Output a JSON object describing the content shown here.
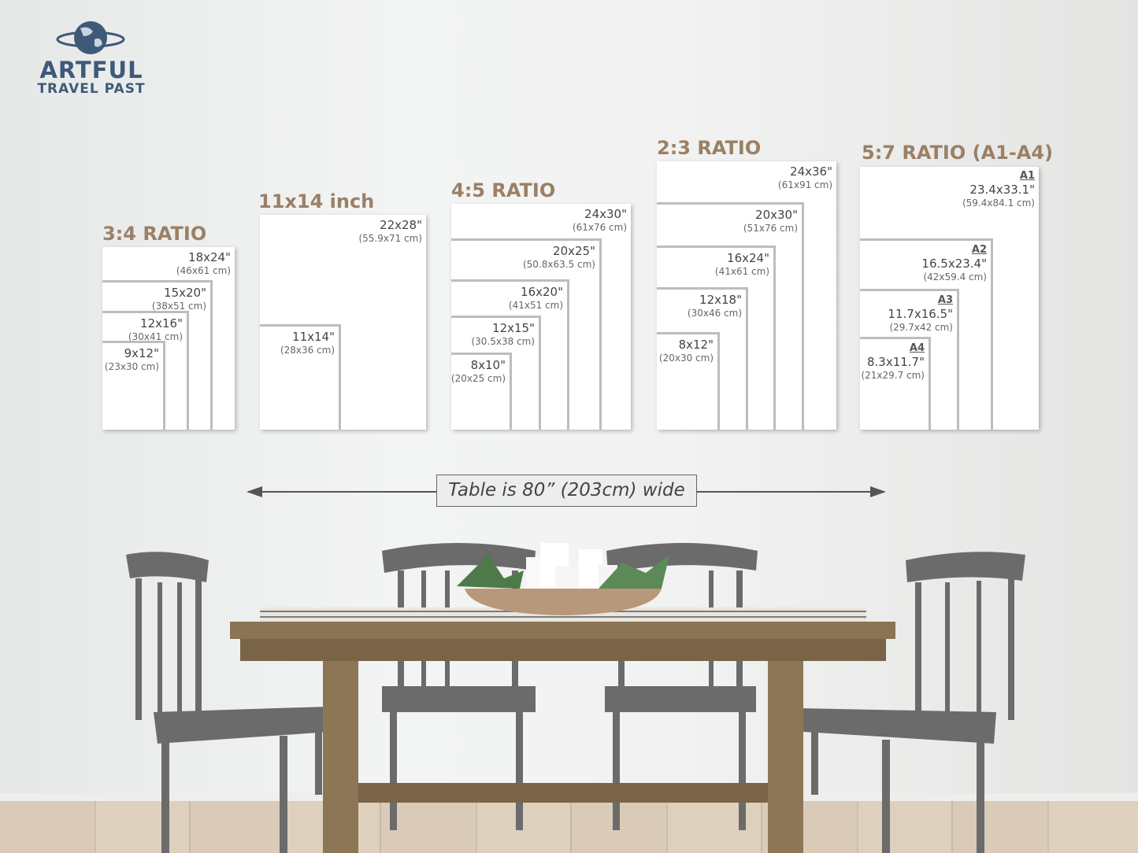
{
  "logo": {
    "line1": "ARTFUL",
    "line2": "TRAVEL PAST",
    "icon": "globe-icon",
    "color": "#3f5a78"
  },
  "accent_color": "#9b8066",
  "groups": [
    {
      "title": "3:4 RATIO",
      "sizes": [
        {
          "in": "18x24\"",
          "cm": "(46x61 cm)"
        },
        {
          "in": "15x20\"",
          "cm": "(38x51 cm)"
        },
        {
          "in": "12x16\"",
          "cm": "(30x41 cm)"
        },
        {
          "in": "9x12\"",
          "cm": "(23x30 cm)"
        }
      ]
    },
    {
      "title": "11x14 inch",
      "sizes": [
        {
          "in": "22x28\"",
          "cm": "(55.9x71 cm)"
        },
        {
          "in": "11x14\"",
          "cm": "(28x36 cm)"
        }
      ]
    },
    {
      "title": "4:5 RATIO",
      "sizes": [
        {
          "in": "24x30\"",
          "cm": "(61x76 cm)"
        },
        {
          "in": "20x25\"",
          "cm": "(50.8x63.5 cm)"
        },
        {
          "in": "16x20\"",
          "cm": "(41x51 cm)"
        },
        {
          "in": "12x15\"",
          "cm": "(30.5x38 cm)"
        },
        {
          "in": "8x10\"",
          "cm": "(20x25 cm)"
        }
      ]
    },
    {
      "title": "2:3 RATIO",
      "sizes": [
        {
          "in": "24x36\"",
          "cm": "(61x91 cm)"
        },
        {
          "in": "20x30\"",
          "cm": "(51x76 cm)"
        },
        {
          "in": "16x24\"",
          "cm": "(41x61 cm)"
        },
        {
          "in": "12x18\"",
          "cm": "(30x46 cm)"
        },
        {
          "in": "8x12\"",
          "cm": "(20x30 cm)"
        }
      ]
    },
    {
      "title": "5:7 RATIO (A1-A4)",
      "sizes": [
        {
          "paper": "A1",
          "in": "23.4x33.1\"",
          "cm": "(59.4x84.1 cm)"
        },
        {
          "paper": "A2",
          "in": "16.5x23.4\"",
          "cm": "(42x59.4 cm)"
        },
        {
          "paper": "A3",
          "in": "11.7x16.5\"",
          "cm": "(29.7x42 cm)"
        },
        {
          "paper": "A4",
          "in": "8.3x11.7\"",
          "cm": "(21x29.7 cm)"
        }
      ]
    }
  ],
  "table_note": "Table is 80” (203cm) wide"
}
